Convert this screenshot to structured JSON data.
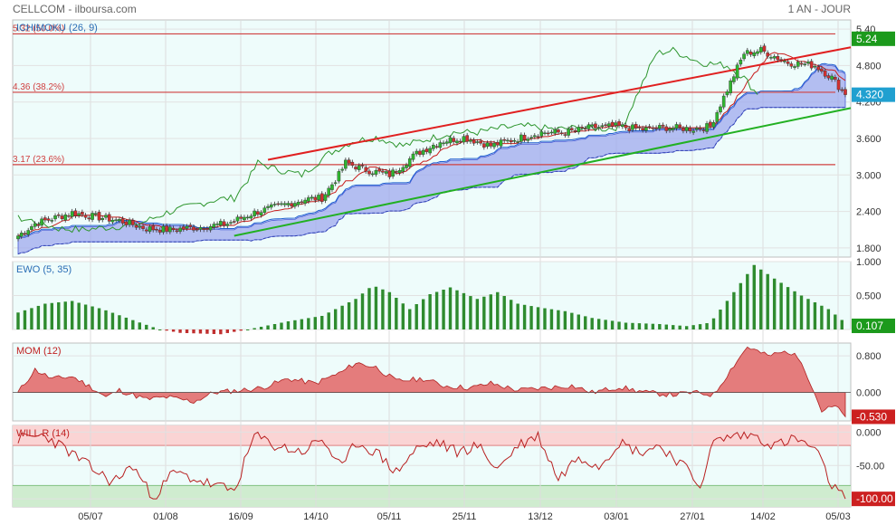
{
  "header": {
    "source": "CELLCOM - ilboursa.com",
    "period": "1 AN - JOUR"
  },
  "colors": {
    "panel_bg": "#eefcfb",
    "cloud": "#9fa9ee",
    "candle_up": "#2fb52f",
    "candle_down": "#d23030",
    "trend_red": "#e02020",
    "trend_green": "#22b022",
    "fib": "#d04040",
    "ewo": "#2e8b2e",
    "ewo_neg": "#c03030",
    "mom_fill": "#e47c7c",
    "willr_line": "#b82020"
  },
  "x_labels": [
    "05/07",
    "01/08",
    "16/09",
    "14/10",
    "05/11",
    "25/11",
    "13/12",
    "03/01",
    "27/01",
    "14/02",
    "05/03"
  ],
  "chart_data": [
    {
      "type": "candlestick",
      "title": "ICHIMOKU (26, 9)",
      "ylim": [
        1.65,
        5.55
      ],
      "y_ticks": [
        "5.40",
        "4.800",
        "4.200",
        "3.600",
        "3.000",
        "2.400",
        "1.800"
      ],
      "fib_levels": [
        {
          "label": "5.32  (50.0%)",
          "value": 5.32
        },
        {
          "label": "4.36  (38.2%)",
          "value": 4.36
        },
        {
          "label": "3.17  (23.6%)",
          "value": 3.17
        }
      ],
      "last_price": "5.24",
      "last_close": "4.320",
      "price_anchors": [
        [
          0,
          2.0
        ],
        [
          5,
          2.2
        ],
        [
          10,
          2.28
        ],
        [
          16,
          2.38
        ],
        [
          22,
          2.32
        ],
        [
          30,
          2.25
        ],
        [
          38,
          2.12
        ],
        [
          45,
          2.1
        ],
        [
          55,
          2.15
        ],
        [
          62,
          2.2
        ],
        [
          70,
          2.38
        ],
        [
          78,
          2.5
        ],
        [
          85,
          2.6
        ],
        [
          90,
          2.62
        ],
        [
          95,
          3.0
        ],
        [
          97,
          3.2
        ],
        [
          102,
          3.1
        ],
        [
          110,
          3.0
        ],
        [
          118,
          3.35
        ],
        [
          125,
          3.55
        ],
        [
          132,
          3.62
        ],
        [
          140,
          3.48
        ],
        [
          148,
          3.6
        ],
        [
          155,
          3.7
        ],
        [
          162,
          3.7
        ],
        [
          170,
          3.78
        ],
        [
          177,
          3.8
        ],
        [
          185,
          3.75
        ],
        [
          192,
          3.78
        ],
        [
          200,
          3.76
        ],
        [
          205,
          3.8
        ],
        [
          210,
          4.4
        ],
        [
          215,
          5.0
        ],
        [
          220,
          5.05
        ],
        [
          228,
          4.85
        ],
        [
          236,
          4.8
        ],
        [
          241,
          4.6
        ],
        [
          245,
          4.32
        ]
      ]
    },
    {
      "type": "bar",
      "title": "EWO (5, 35)",
      "ylim": [
        0,
        1.0
      ],
      "y_ticks": [
        "1.000",
        "0.500",
        "0.000"
      ],
      "last_value": "0.107",
      "anchors": [
        [
          0,
          0.25
        ],
        [
          8,
          0.38
        ],
        [
          16,
          0.42
        ],
        [
          25,
          0.3
        ],
        [
          35,
          0.12
        ],
        [
          42,
          0.0
        ],
        [
          48,
          -0.05
        ],
        [
          60,
          -0.07
        ],
        [
          68,
          0.0
        ],
        [
          80,
          0.12
        ],
        [
          90,
          0.2
        ],
        [
          100,
          0.45
        ],
        [
          105,
          0.65
        ],
        [
          110,
          0.55
        ],
        [
          116,
          0.3
        ],
        [
          122,
          0.52
        ],
        [
          128,
          0.62
        ],
        [
          136,
          0.45
        ],
        [
          142,
          0.55
        ],
        [
          148,
          0.38
        ],
        [
          155,
          0.32
        ],
        [
          162,
          0.27
        ],
        [
          170,
          0.17
        ],
        [
          180,
          0.1
        ],
        [
          190,
          0.08
        ],
        [
          198,
          0.05
        ],
        [
          205,
          0.1
        ],
        [
          212,
          0.55
        ],
        [
          218,
          0.95
        ],
        [
          224,
          0.75
        ],
        [
          232,
          0.5
        ],
        [
          240,
          0.3
        ],
        [
          245,
          0.1
        ]
      ]
    },
    {
      "type": "area",
      "title": "MOM (12)",
      "ylim": [
        -0.62,
        1.08
      ],
      "y_ticks": [
        "0.800",
        "0.000",
        "-0.530"
      ],
      "last_value": "-0.530",
      "anchors": [
        [
          0,
          0.0
        ],
        [
          5,
          0.5
        ],
        [
          10,
          0.3
        ],
        [
          16,
          0.35
        ],
        [
          22,
          0.1
        ],
        [
          26,
          -0.1
        ],
        [
          30,
          0.05
        ],
        [
          38,
          -0.15
        ],
        [
          44,
          -0.1
        ],
        [
          52,
          -0.2
        ],
        [
          58,
          0.0
        ],
        [
          66,
          0.05
        ],
        [
          72,
          0.1
        ],
        [
          80,
          0.3
        ],
        [
          88,
          0.2
        ],
        [
          96,
          0.45
        ],
        [
          100,
          0.65
        ],
        [
          106,
          0.55
        ],
        [
          112,
          0.25
        ],
        [
          120,
          0.3
        ],
        [
          126,
          0.15
        ],
        [
          134,
          0.1
        ],
        [
          140,
          0.2
        ],
        [
          148,
          0.05
        ],
        [
          156,
          0.1
        ],
        [
          164,
          0.15
        ],
        [
          170,
          0.0
        ],
        [
          178,
          0.12
        ],
        [
          186,
          0.0
        ],
        [
          194,
          -0.05
        ],
        [
          200,
          0.0
        ],
        [
          206,
          -0.05
        ],
        [
          212,
          0.6
        ],
        [
          216,
          1.0
        ],
        [
          222,
          0.8
        ],
        [
          228,
          0.9
        ],
        [
          232,
          0.7
        ],
        [
          238,
          -0.4
        ],
        [
          242,
          -0.3
        ],
        [
          245,
          -0.53
        ]
      ]
    },
    {
      "type": "line",
      "title": "WILL R (14)",
      "ylim": [
        -112,
        10
      ],
      "y_ticks": [
        "0.000",
        "-50.00",
        "-100.00"
      ],
      "bands": {
        "overbought": -20,
        "oversold": -80
      },
      "last_value": "-100.00",
      "anchors": [
        [
          0,
          -10
        ],
        [
          8,
          -5
        ],
        [
          14,
          -25
        ],
        [
          22,
          -55
        ],
        [
          28,
          -75
        ],
        [
          34,
          -50
        ],
        [
          40,
          -100
        ],
        [
          46,
          -60
        ],
        [
          52,
          -70
        ],
        [
          58,
          -80
        ],
        [
          64,
          -88
        ],
        [
          70,
          -5
        ],
        [
          76,
          -20
        ],
        [
          84,
          -30
        ],
        [
          90,
          -10
        ],
        [
          96,
          -55
        ],
        [
          100,
          -15
        ],
        [
          106,
          -30
        ],
        [
          112,
          -60
        ],
        [
          118,
          -25
        ],
        [
          124,
          -15
        ],
        [
          130,
          -30
        ],
        [
          136,
          -20
        ],
        [
          142,
          -55
        ],
        [
          148,
          -20
        ],
        [
          154,
          -5
        ],
        [
          160,
          -70
        ],
        [
          166,
          -35
        ],
        [
          172,
          -50
        ],
        [
          178,
          -15
        ],
        [
          184,
          -30
        ],
        [
          190,
          -20
        ],
        [
          196,
          -45
        ],
        [
          202,
          -80
        ],
        [
          206,
          -15
        ],
        [
          212,
          -5
        ],
        [
          218,
          -5
        ],
        [
          224,
          -20
        ],
        [
          230,
          -10
        ],
        [
          236,
          -25
        ],
        [
          241,
          -80
        ],
        [
          245,
          -100
        ]
      ]
    }
  ]
}
